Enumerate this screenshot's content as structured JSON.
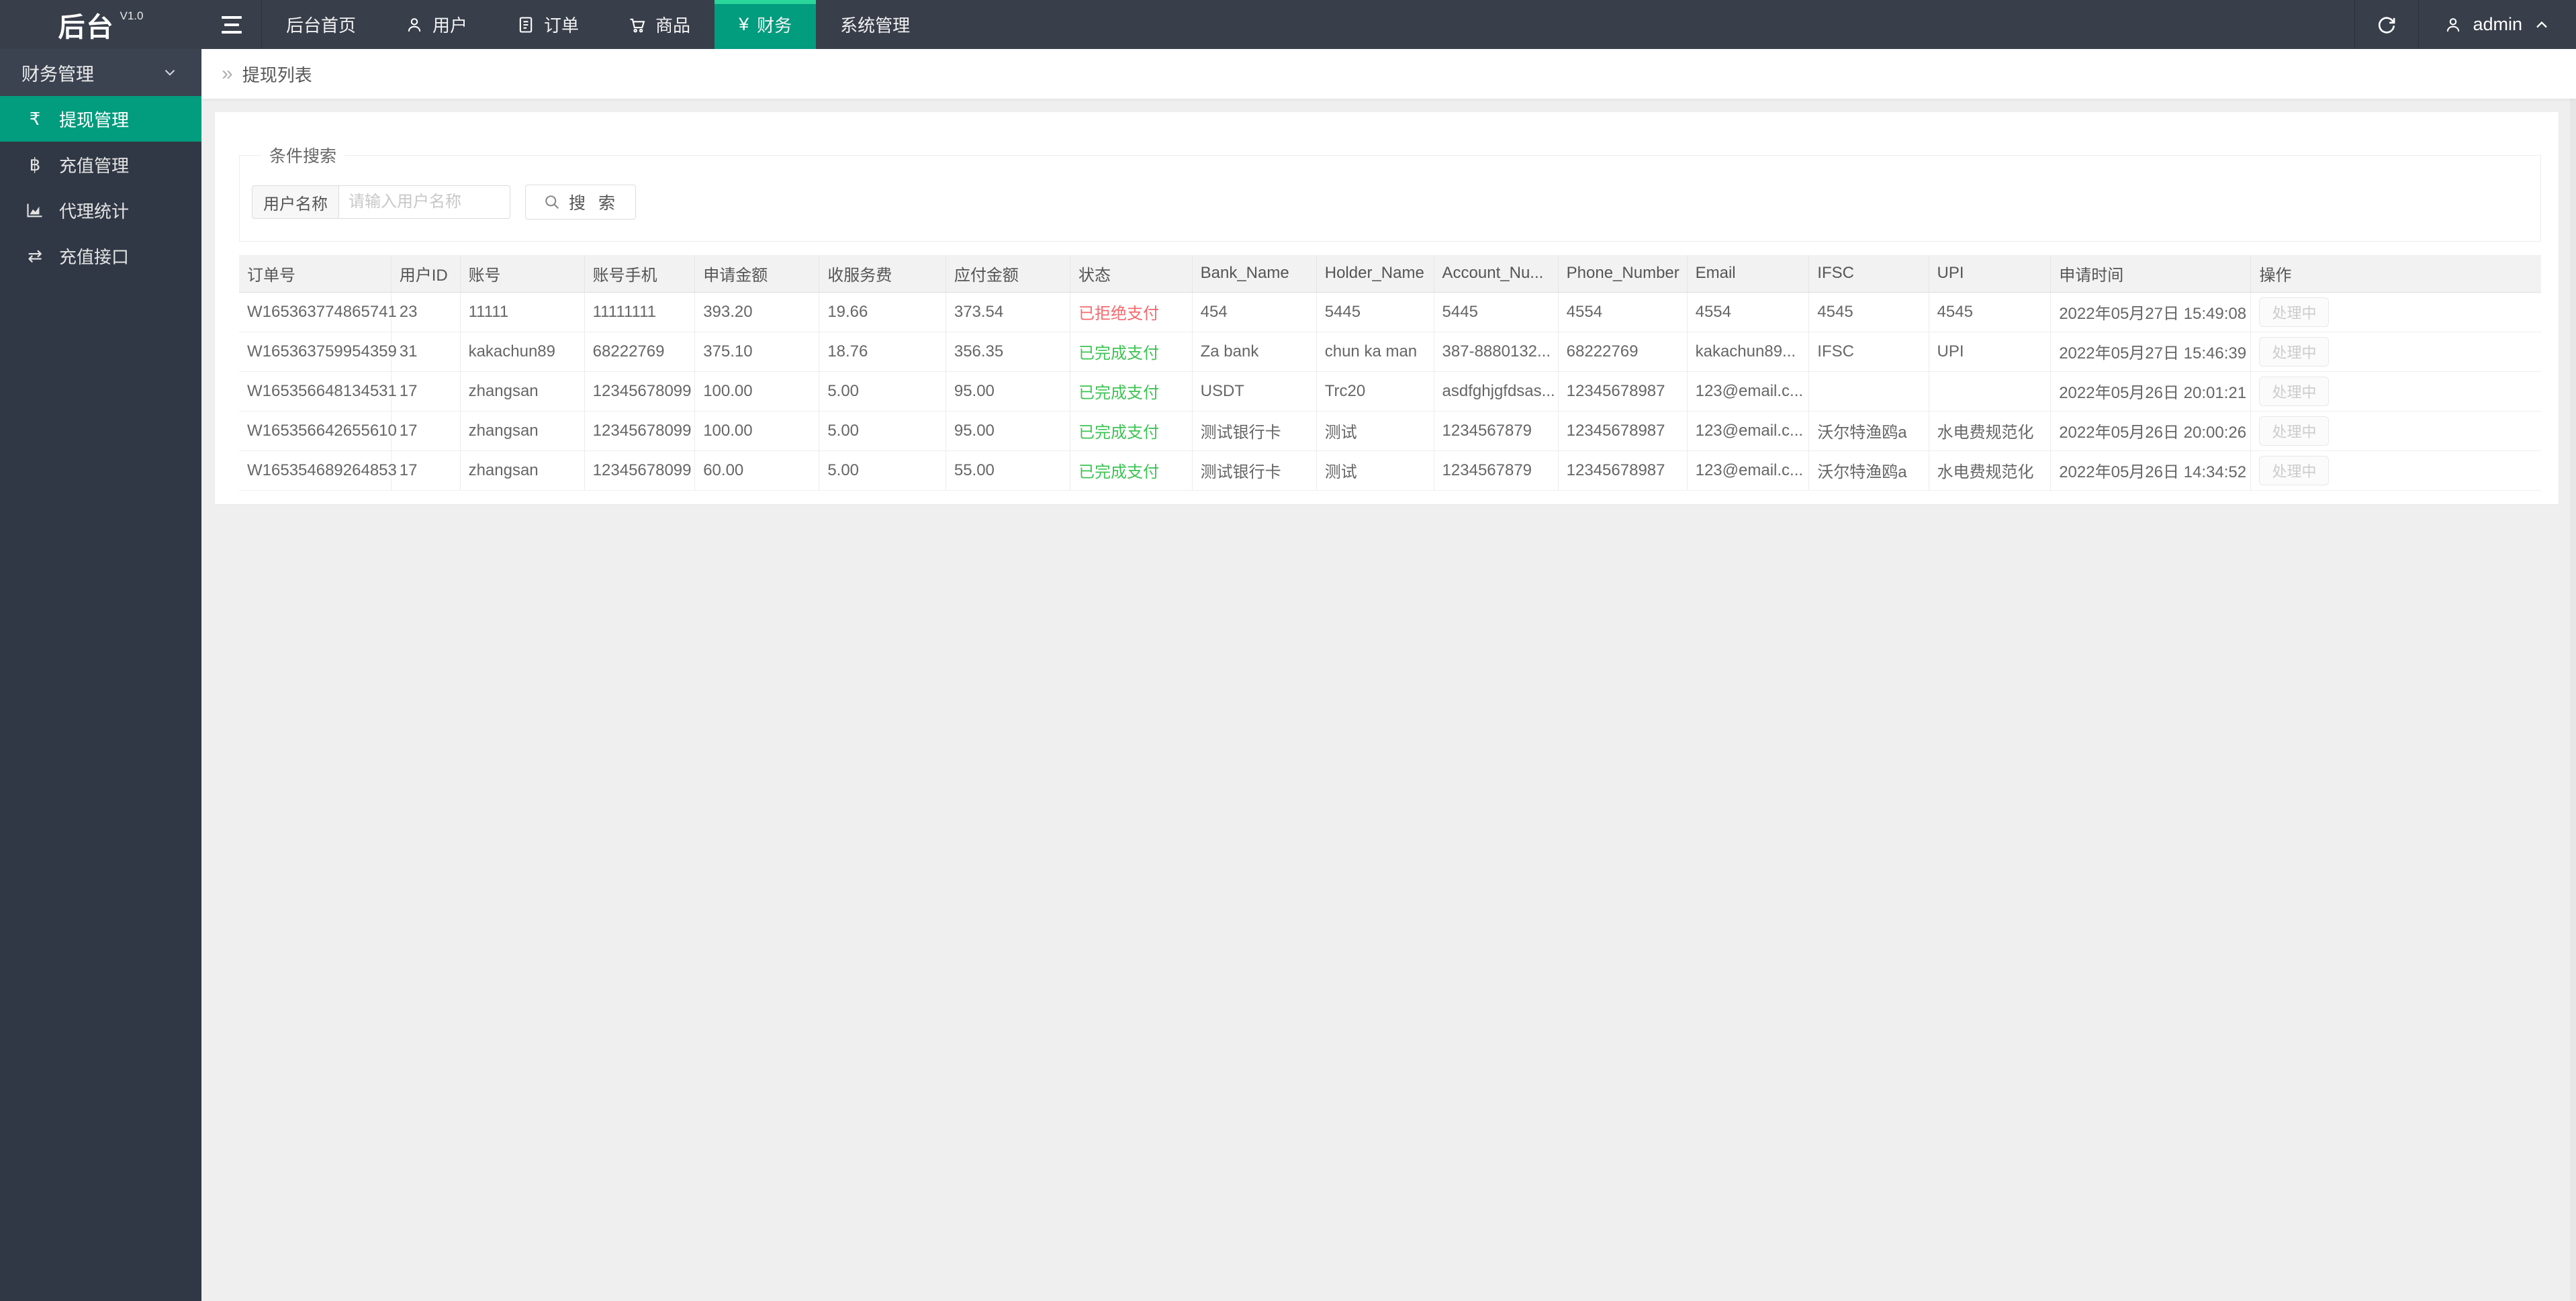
{
  "navbar": {
    "logo": "后台",
    "version": "V1.0",
    "items": [
      {
        "label": "后台首页",
        "icon": "home"
      },
      {
        "label": "用户",
        "icon": "user-icon"
      },
      {
        "label": "订单",
        "icon": "document-icon"
      },
      {
        "label": "商品",
        "icon": "cart-icon"
      },
      {
        "label": "财务",
        "icon": "yen-icon",
        "glyph": "¥",
        "active": true
      },
      {
        "label": "系统管理",
        "icon": "none"
      }
    ],
    "user": "admin"
  },
  "sidebar": {
    "group": "财务管理",
    "items": [
      {
        "label": "提现管理",
        "icon": "rupee-icon",
        "glyph": "₹",
        "active": true
      },
      {
        "label": "充值管理",
        "icon": "baht-icon",
        "glyph": "฿",
        "active": false
      },
      {
        "label": "代理统计",
        "icon": "chart-area-icon",
        "glyph": "",
        "active": false
      },
      {
        "label": "充值接口",
        "icon": "exchange-icon",
        "glyph": "⇄",
        "active": false
      }
    ]
  },
  "breadcrumb": {
    "chevron_glyph": "»",
    "title": "提现列表"
  },
  "search": {
    "legend": "条件搜索",
    "label": "用户名称",
    "placeholder": "请输入用户名称",
    "button": "搜 索"
  },
  "table": {
    "columns": [
      "订单号",
      "用户ID",
      "账号",
      "账号手机",
      "申请金额",
      "收服务费",
      "应付金额",
      "状态",
      "Bank_Name",
      "Holder_Name",
      "Account_Nu...",
      "Phone_Number",
      "Email",
      "IFSC",
      "UPI",
      "申请时间",
      "操作"
    ],
    "action_label": "处理中",
    "rows": [
      {
        "status": "rejected",
        "cells": [
          "W165363774865741",
          "23",
          "11111",
          "11111111",
          "393.20",
          "19.66",
          "373.54",
          "已拒绝支付",
          "454",
          "5445",
          "5445",
          "4554",
          "4554",
          "4545",
          "4545",
          "2022年05月27日 15:49:08"
        ]
      },
      {
        "status": "completed",
        "cells": [
          "W165363759954359",
          "31",
          "kakachun89",
          "68222769",
          "375.10",
          "18.76",
          "356.35",
          "已完成支付",
          "Za bank",
          "chun ka man",
          "387-8880132...",
          "68222769",
          "kakachun89...",
          "IFSC",
          "UPI",
          "2022年05月27日 15:46:39"
        ]
      },
      {
        "status": "completed",
        "cells": [
          "W165356648134531",
          "17",
          "zhangsan",
          "12345678099",
          "100.00",
          "5.00",
          "95.00",
          "已完成支付",
          "USDT",
          "Trc20",
          "asdfghjgfdsas...",
          "12345678987",
          "123@email.c...",
          "",
          "",
          "2022年05月26日 20:01:21"
        ]
      },
      {
        "status": "completed",
        "cells": [
          "W165356642655610",
          "17",
          "zhangsan",
          "12345678099",
          "100.00",
          "5.00",
          "95.00",
          "已完成支付",
          "测试银行卡",
          "测试",
          "1234567879",
          "12345678987",
          "123@email.c...",
          "沃尔特渔鸥a",
          "水电费规范化",
          "2022年05月26日 20:00:26"
        ]
      },
      {
        "status": "completed",
        "cells": [
          "W165354689264853",
          "17",
          "zhangsan",
          "12345678099",
          "60.00",
          "5.00",
          "55.00",
          "已完成支付",
          "测试银行卡",
          "测试",
          "1234567879",
          "12345678987",
          "123@email.c...",
          "沃尔特渔鸥a",
          "水电费规范化",
          "2022年05月26日 14:34:52"
        ]
      }
    ]
  },
  "colors": {
    "topbar_bg": "#383e4a",
    "sidebar_bg": "#313845",
    "accent_teal": "#029c7e",
    "accent_strip": "#2bd69b",
    "status_rejected": "#f5696d",
    "status_completed": "#3cc453"
  }
}
